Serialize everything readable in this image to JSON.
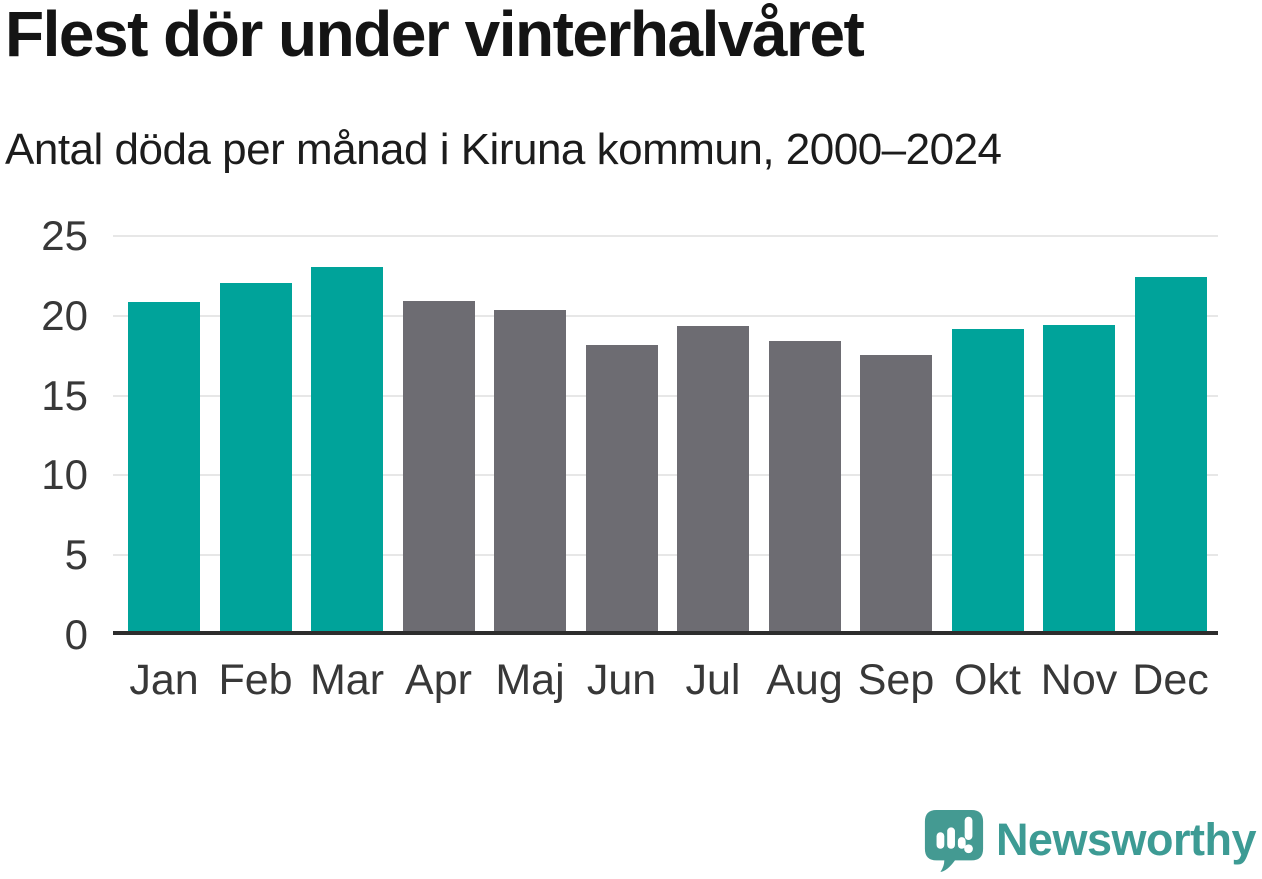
{
  "header": {
    "title": "Flest dör under vinterhalvåret",
    "subtitle": "Antal döda per månad i Kiruna kommun, 2000–2024"
  },
  "chart_data": {
    "type": "bar",
    "title": "Flest dör under vinterhalvåret",
    "subtitle": "Antal döda per månad i Kiruna kommun, 2000–2024",
    "categories": [
      "Jan",
      "Feb",
      "Mar",
      "Apr",
      "Maj",
      "Jun",
      "Jul",
      "Aug",
      "Sep",
      "Okt",
      "Nov",
      "Dec"
    ],
    "values": [
      20.6,
      21.8,
      22.8,
      20.7,
      20.1,
      17.9,
      19.1,
      18.2,
      17.3,
      18.9,
      19.2,
      22.2
    ],
    "highlighted_months": [
      true,
      true,
      true,
      false,
      false,
      false,
      false,
      false,
      false,
      true,
      true,
      true
    ],
    "highlight_color": "#00a39a",
    "muted_color": "#6d6c72",
    "yticks": [
      0,
      5,
      10,
      15,
      20,
      25
    ],
    "ylim": [
      0,
      25
    ],
    "xlabel": "",
    "ylabel": "",
    "grid": "horizontal",
    "legend": "none"
  },
  "footer": {
    "brand": "Newsworthy",
    "brand_color": "#3d9b94",
    "logo_color": "#449a92",
    "logo_icon": "newsworthy-speech-bubble-bar-chart-icon"
  }
}
